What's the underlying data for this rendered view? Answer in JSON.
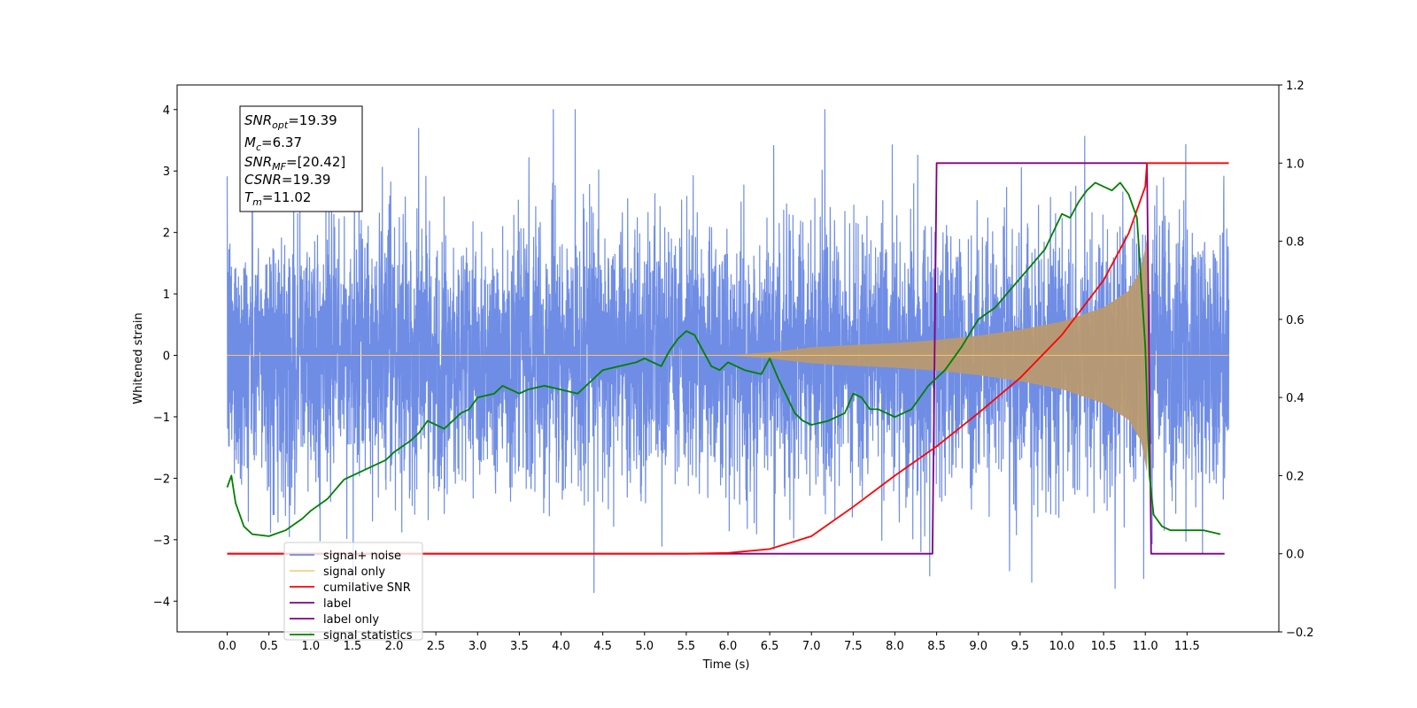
{
  "chart_data": {
    "type": "line",
    "title": "",
    "xlabel": "Time (s)",
    "ylabel": "Whitened strain",
    "x_range": [
      -0.6,
      12.6
    ],
    "ylim": [
      -4.5,
      4.4
    ],
    "ylim_right": [
      -0.2,
      1.2
    ],
    "x_ticks": [
      "0.0",
      "0.5",
      "1.0",
      "1.5",
      "2.0",
      "2.5",
      "3.0",
      "3.5",
      "4.0",
      "4.5",
      "5.0",
      "5.5",
      "6.0",
      "6.5",
      "7.0",
      "7.5",
      "8.0",
      "8.5",
      "9.0",
      "9.5",
      "10.0",
      "10.5",
      "11.0",
      "11.5"
    ],
    "y_ticks_left": [
      "4",
      "3",
      "2",
      "1",
      "0",
      "−1",
      "−2",
      "−3",
      "−4"
    ],
    "y_ticks_right": [
      "1.2",
      "1.0",
      "0.8",
      "0.6",
      "0.4",
      "0.2",
      "0.0",
      "−0.2"
    ],
    "grid": false,
    "legend_position": "lower-left",
    "annotation": {
      "SNR_opt": "19.39",
      "M_c": "6.37",
      "SNR_MF": "[20.42]",
      "CSNR": "19.39",
      "T_m": "11.02"
    },
    "series": [
      {
        "name": "signal+ noise",
        "color": "#6f8de4",
        "axis": "left",
        "x_span": [
          0.0,
          12.0
        ],
        "envelope_typical": 2.4,
        "peak_max": 4.0,
        "peak_min": -4.1
      },
      {
        "name": "signal only",
        "color": "#f5c26b",
        "axis": "left",
        "envelope": {
          "x": [
            0,
            6.0,
            6.5,
            7.0,
            7.5,
            8.0,
            8.5,
            9.0,
            9.5,
            10.0,
            10.5,
            10.8,
            10.95,
            11.02,
            11.05,
            12.0
          ],
          "y": [
            0.0,
            0.0,
            0.05,
            0.13,
            0.17,
            0.2,
            0.25,
            0.32,
            0.42,
            0.55,
            0.78,
            1.05,
            1.4,
            1.9,
            0.0,
            0.0
          ]
        }
      },
      {
        "name": "cumilative SNR",
        "color": "#ff0000",
        "axis": "right",
        "x": [
          0,
          5.5,
          6.0,
          6.5,
          7.0,
          7.5,
          8.0,
          8.5,
          9.0,
          9.5,
          10.0,
          10.5,
          10.8,
          11.0,
          11.02,
          12.0
        ],
        "y": [
          0.0,
          0.0,
          0.002,
          0.012,
          0.045,
          0.12,
          0.2,
          0.275,
          0.36,
          0.45,
          0.56,
          0.7,
          0.82,
          0.94,
          1.0,
          1.0
        ]
      },
      {
        "name": "label",
        "color": "#800080",
        "axis": "right",
        "x": [
          0,
          8.45,
          8.5,
          11.02,
          11.07,
          11.95
        ],
        "y": [
          0.0,
          0.0,
          1.0,
          1.0,
          0.0,
          0.0
        ]
      },
      {
        "name": "label only",
        "color": "#800080",
        "axis": "right",
        "x": [],
        "y": []
      },
      {
        "name": "signal statistics",
        "color": "#008000",
        "axis": "right",
        "x": [
          0.0,
          0.05,
          0.1,
          0.2,
          0.3,
          0.5,
          0.7,
          0.9,
          1.0,
          1.2,
          1.4,
          1.5,
          1.7,
          1.9,
          2.0,
          2.2,
          2.3,
          2.4,
          2.5,
          2.6,
          2.8,
          2.9,
          3.0,
          3.2,
          3.3,
          3.5,
          3.6,
          3.8,
          4.0,
          4.2,
          4.3,
          4.5,
          4.7,
          4.9,
          5.0,
          5.2,
          5.3,
          5.4,
          5.5,
          5.6,
          5.7,
          5.8,
          5.9,
          6.0,
          6.2,
          6.4,
          6.5,
          6.6,
          6.8,
          6.9,
          7.0,
          7.2,
          7.4,
          7.5,
          7.6,
          7.7,
          7.8,
          8.0,
          8.2,
          8.4,
          8.5,
          8.6,
          8.8,
          9.0,
          9.2,
          9.4,
          9.6,
          9.8,
          10.0,
          10.1,
          10.2,
          10.3,
          10.4,
          10.5,
          10.6,
          10.7,
          10.8,
          10.9,
          11.0,
          11.05,
          11.1,
          11.2,
          11.3,
          11.5,
          11.7,
          11.9
        ],
        "y": [
          0.17,
          0.2,
          0.13,
          0.07,
          0.05,
          0.045,
          0.06,
          0.09,
          0.11,
          0.14,
          0.19,
          0.2,
          0.22,
          0.24,
          0.26,
          0.29,
          0.31,
          0.34,
          0.33,
          0.32,
          0.36,
          0.37,
          0.4,
          0.41,
          0.43,
          0.41,
          0.42,
          0.43,
          0.42,
          0.41,
          0.43,
          0.47,
          0.48,
          0.49,
          0.5,
          0.48,
          0.52,
          0.55,
          0.57,
          0.56,
          0.52,
          0.48,
          0.47,
          0.49,
          0.47,
          0.46,
          0.5,
          0.45,
          0.36,
          0.34,
          0.33,
          0.34,
          0.36,
          0.41,
          0.4,
          0.37,
          0.37,
          0.35,
          0.37,
          0.43,
          0.45,
          0.47,
          0.53,
          0.6,
          0.63,
          0.68,
          0.73,
          0.78,
          0.87,
          0.86,
          0.9,
          0.93,
          0.95,
          0.94,
          0.93,
          0.95,
          0.92,
          0.86,
          0.53,
          0.2,
          0.1,
          0.07,
          0.06,
          0.06,
          0.06,
          0.05
        ]
      }
    ]
  }
}
